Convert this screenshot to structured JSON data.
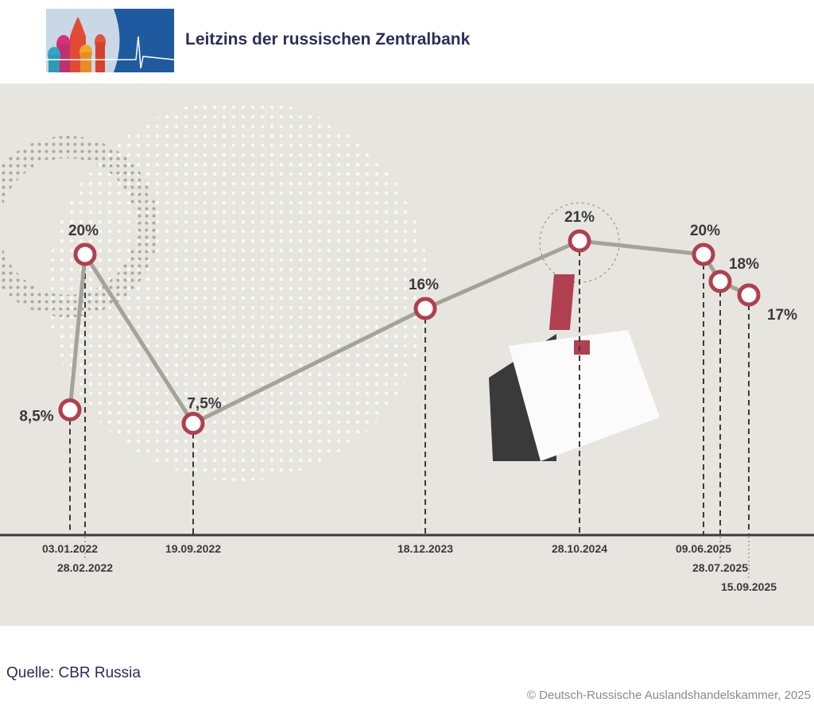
{
  "header": {
    "title": "Leitzins der russischen Zentralbank"
  },
  "footer": {
    "source": "Quelle: CBR Russia",
    "copyright": "© Deutsch-Russische Auslandshandelskammer, 2025"
  },
  "colors": {
    "line": "#a3a397",
    "marker": "#b0404f",
    "axis": "#3a3a3a",
    "title": "#2b2d5a"
  },
  "chart_data": {
    "type": "line",
    "title": "Leitzins der russischen Zentralbank",
    "x": [
      "03.01.2022",
      "28.02.2022",
      "19.09.2022",
      "18.12.2023",
      "28.10.2024",
      "09.06.2025",
      "28.07.2025",
      "15.09.2025"
    ],
    "values": [
      8.5,
      20,
      7.5,
      16,
      21,
      20,
      18,
      17
    ],
    "labels": [
      "8,5%",
      "20%",
      "7,5%",
      "16%",
      "21%",
      "20%",
      "18%",
      "17%"
    ],
    "xlabel": "",
    "ylabel": "",
    "unit": "%"
  }
}
